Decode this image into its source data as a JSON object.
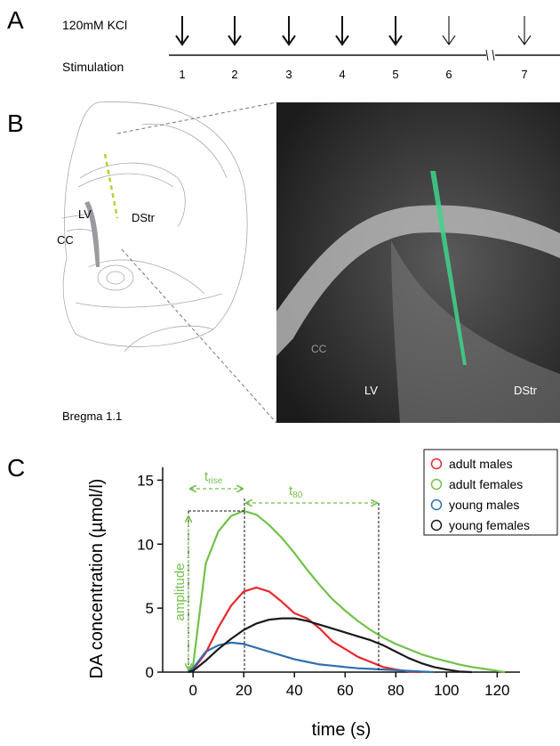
{
  "panel_a": {
    "label": "A",
    "row_kcl": "120mM KCl",
    "row_stimulation": "Stimulation",
    "stimulations": [
      "1",
      "2",
      "3",
      "4",
      "5",
      "6",
      "7"
    ]
  },
  "panel_b": {
    "label": "B",
    "schematic_labels": {
      "lv": "LV",
      "dstr": "DStr",
      "cc": "CC"
    },
    "bregma": "Bregma 1.1",
    "image_labels": {
      "cc": "CC",
      "lv": "LV",
      "dstr": "DStr"
    }
  },
  "panel_c": {
    "label": "C"
  },
  "chart_data": {
    "type": "line",
    "x_label": "time (s)",
    "y_label": "DA concentration (µmol/l)",
    "annotations": {
      "t_rise": {
        "main": "t",
        "sub": "rise"
      },
      "t_80": {
        "main": "t",
        "sub": "80"
      },
      "amplitude": "amplitude"
    },
    "x": [
      -2,
      0,
      5,
      10,
      15,
      20,
      25,
      30,
      35,
      40,
      45,
      50,
      55,
      60,
      65,
      70,
      75,
      80,
      85,
      90,
      95,
      100,
      105,
      110,
      115,
      120,
      123
    ],
    "series": [
      {
        "name": "adult males",
        "color": "#e8282d",
        "values": [
          0,
          0.2,
          1.5,
          3.5,
          5.2,
          6.3,
          6.6,
          6.3,
          5.5,
          4.6,
          4.2,
          3.4,
          2.4,
          1.8,
          1.2,
          0.8,
          0.4,
          0.2,
          0.05,
          0,
          null,
          null,
          null,
          null,
          null,
          null,
          null
        ]
      },
      {
        "name": "adult females",
        "color": "#72c14a",
        "values": [
          0,
          0.5,
          8.5,
          11,
          12.2,
          12.6,
          12.3,
          11.5,
          10.5,
          9.3,
          8,
          6.8,
          5.7,
          4.8,
          4,
          3.3,
          2.7,
          2.2,
          1.8,
          1.4,
          1.1,
          0.85,
          0.6,
          0.4,
          0.25,
          0.1,
          0
        ]
      },
      {
        "name": "young males",
        "color": "#2f6fad",
        "values": [
          0,
          0.3,
          1.6,
          2.1,
          2.3,
          2.2,
          1.9,
          1.6,
          1.3,
          1.0,
          0.8,
          0.6,
          0.5,
          0.4,
          0.3,
          0.25,
          0.2,
          0.15,
          0.1,
          0.05,
          0,
          null,
          null,
          null,
          null,
          null,
          null
        ]
      },
      {
        "name": "young females",
        "color": "#1a1a1a",
        "values": [
          0,
          0.1,
          0.9,
          1.8,
          2.6,
          3.3,
          3.8,
          4.1,
          4.2,
          4.2,
          4.0,
          3.7,
          3.4,
          3.1,
          2.8,
          2.5,
          2.1,
          1.6,
          1.1,
          0.7,
          0.4,
          0.2,
          0.05,
          0,
          null,
          null,
          null
        ]
      }
    ],
    "xlim": [
      -12,
      129
    ],
    "ylim": [
      0,
      16
    ],
    "xticks": [
      0,
      20,
      40,
      60,
      80,
      100,
      120
    ],
    "yticks": [
      0,
      5,
      10,
      15
    ],
    "legend": "upper right"
  }
}
